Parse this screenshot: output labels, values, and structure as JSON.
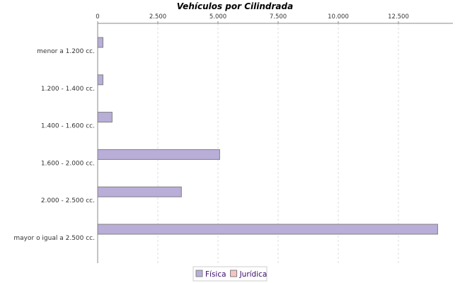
{
  "chart_data": {
    "type": "bar",
    "orientation": "horizontal",
    "title": "Vehículos por Cilindrada",
    "categories": [
      "menor a 1.200 cc.",
      "1.200 - 1.400 cc.",
      "1.400 - 1.600 cc.",
      "1.600 - 2.000 cc.",
      "2.000 - 2.500 cc.",
      "mayor o igual a 2.500 cc."
    ],
    "series": [
      {
        "name": "Física",
        "color": "#b8aed8",
        "values": [
          220,
          220,
          600,
          5070,
          3480,
          14130
        ]
      },
      {
        "name": "Jurídica",
        "color": "#f8c4c4",
        "values": [
          0,
          0,
          0,
          0,
          0,
          0
        ]
      }
    ],
    "xlim": [
      0,
      14700
    ],
    "ticks": [
      "0",
      "2.500",
      "5.000",
      "7.500",
      "10.000",
      "12.500"
    ],
    "tick_values": [
      0,
      2500,
      5000,
      7500,
      10000,
      12500
    ],
    "axis_position": "top",
    "grid": true,
    "legend": "bottom"
  }
}
